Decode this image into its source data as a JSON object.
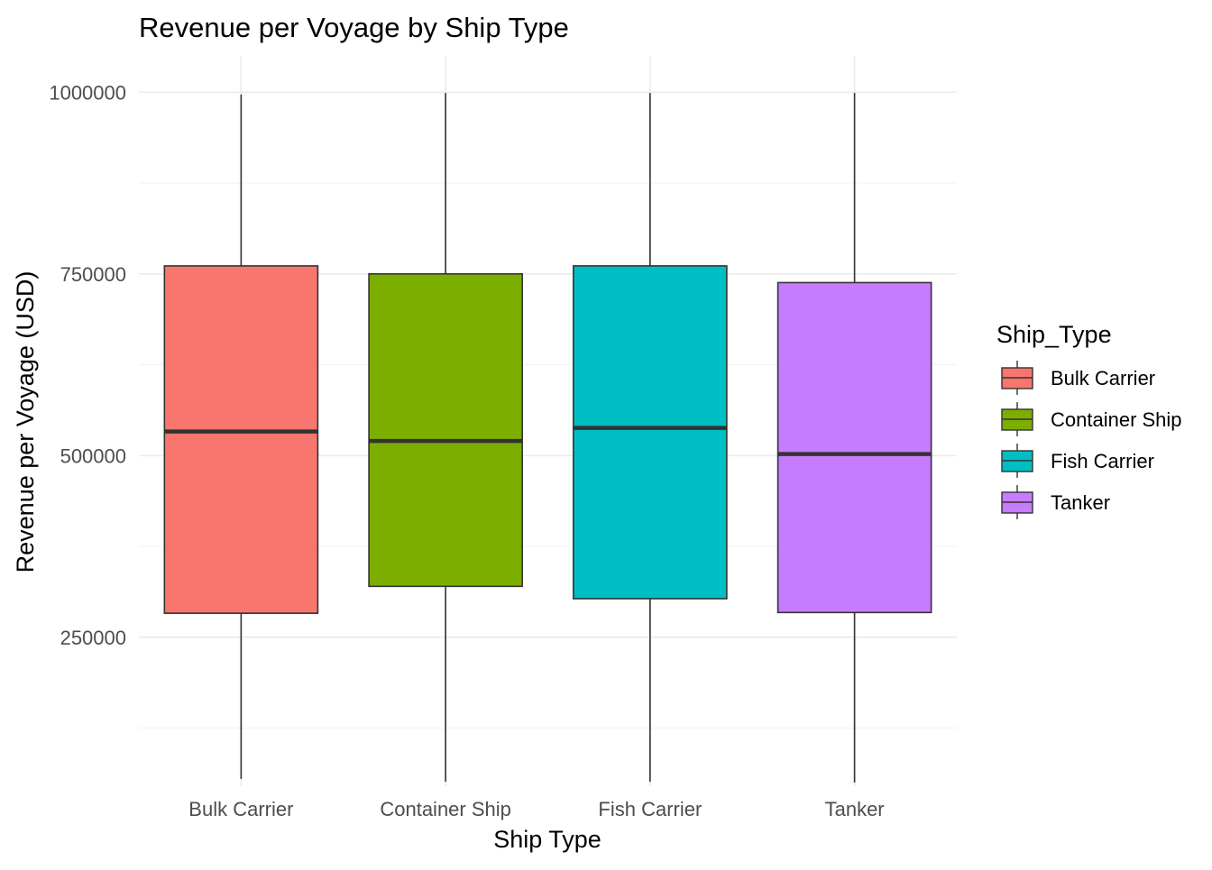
{
  "chart_data": {
    "type": "boxplot",
    "title": "Revenue per Voyage by Ship Type",
    "xlabel": "Ship Type",
    "ylabel": "Revenue per Voyage (USD)",
    "categories": [
      "Bulk Carrier",
      "Container Ship",
      "Fish Carrier",
      "Tanker"
    ],
    "ylim": [
      45000,
      1050000
    ],
    "yticks": [
      250000,
      500000,
      750000,
      1000000
    ],
    "ytick_labels": [
      "250000",
      "500000",
      "750000",
      "1000000"
    ],
    "grid": true,
    "legend": {
      "title": "Ship_Type",
      "position": "right",
      "entries": [
        "Bulk Carrier",
        "Container Ship",
        "Fish Carrier",
        "Tanker"
      ]
    },
    "colors": {
      "Bulk Carrier": "#F8766D",
      "Container Ship": "#7CAE00",
      "Fish Carrier": "#00BFC4",
      "Tanker": "#C77CFF"
    },
    "series": [
      {
        "category": "Bulk Carrier",
        "min": 55000,
        "q1": 283000,
        "median": 533000,
        "q3": 761000,
        "max": 997000
      },
      {
        "category": "Container Ship",
        "min": 51000,
        "q1": 320000,
        "median": 520000,
        "q3": 750000,
        "max": 999000
      },
      {
        "category": "Fish Carrier",
        "min": 51000,
        "q1": 303000,
        "median": 538000,
        "q3": 761000,
        "max": 999000
      },
      {
        "category": "Tanker",
        "min": 50000,
        "q1": 284000,
        "median": 502000,
        "q3": 738000,
        "max": 999000
      }
    ]
  }
}
